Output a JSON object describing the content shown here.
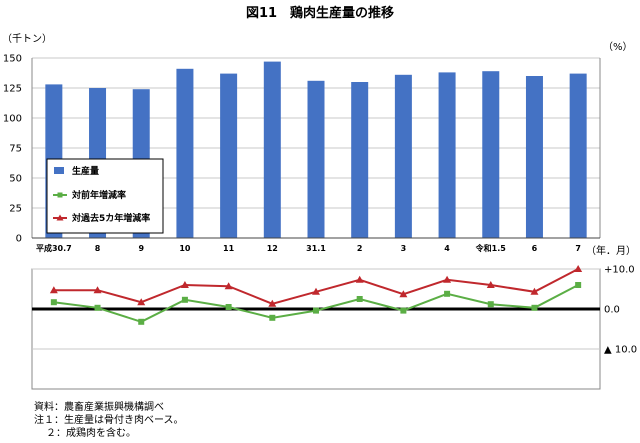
{
  "chart_data": {
    "title": "図11　鶏肉生産量の推移",
    "type": "bar",
    "categories": [
      "平成30.7",
      "8",
      "9",
      "10",
      "11",
      "12",
      "31.1",
      "2",
      "3",
      "4",
      "令和1.5",
      "6",
      "7"
    ],
    "x_unit": "（年．月）",
    "upper_panel": {
      "y_unit": "（千トン）",
      "y_ticks": [
        "0",
        "25",
        "50",
        "75",
        "100",
        "125",
        "150"
      ],
      "ylim": [
        0,
        150
      ],
      "grid": true,
      "series": [
        {
          "name": "生産量",
          "type": "bar",
          "color": "#4472C4",
          "values": [
            128,
            125,
            124,
            141,
            137,
            147,
            131,
            130,
            136,
            138,
            139,
            135,
            137
          ]
        }
      ]
    },
    "lower_panel": {
      "y_unit": "（%）",
      "y_ticks": [
        "+10.0",
        "0.0",
        "▲ 10.0"
      ],
      "ylim": [
        -20,
        10
      ],
      "series": [
        {
          "name": "対前年増減率",
          "type": "line",
          "color": "#5BAE45",
          "marker": "square",
          "values": [
            1.7,
            0.3,
            -3.2,
            2.3,
            0.5,
            -2.2,
            -0.4,
            2.5,
            -0.4,
            3.8,
            1.2,
            0.3,
            6.0
          ]
        },
        {
          "name": "対過去5カ年増減率",
          "type": "line",
          "color": "#C0282D",
          "marker": "triangle",
          "values": [
            4.7,
            4.7,
            1.7,
            6.0,
            5.7,
            1.3,
            4.3,
            7.3,
            3.7,
            7.3,
            6.0,
            4.3,
            10.0
          ]
        }
      ]
    },
    "legend": {
      "placement": "upper-left",
      "items": [
        {
          "label": "生産量",
          "marker": "bar"
        },
        {
          "label": "対前年増減率",
          "marker": "square"
        },
        {
          "label": "対過去5カ年増減率",
          "marker": "triangle"
        }
      ]
    }
  },
  "notes": {
    "source": "資料：農畜産業振興機構調べ",
    "note1": "注１：生産量は骨付き肉ベース。",
    "note2": "２：成鶏肉を含む。"
  }
}
